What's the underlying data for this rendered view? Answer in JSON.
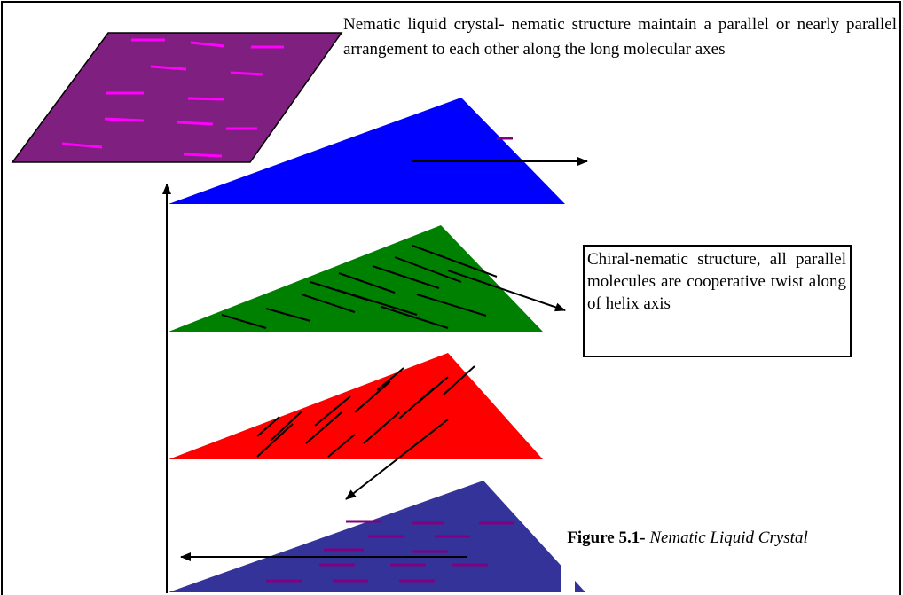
{
  "top_caption": "Nematic liquid crystal- nematic structure maintain a parallel or nearly parallel arrangement to each other along the long molecular axes",
  "box_caption": "Chiral-nematic structure, all parallel molecules are cooperative twist along of helix axis",
  "figure": {
    "label": "Figure 5.1-",
    "title": "Nematic Liquid Crystal"
  }
}
